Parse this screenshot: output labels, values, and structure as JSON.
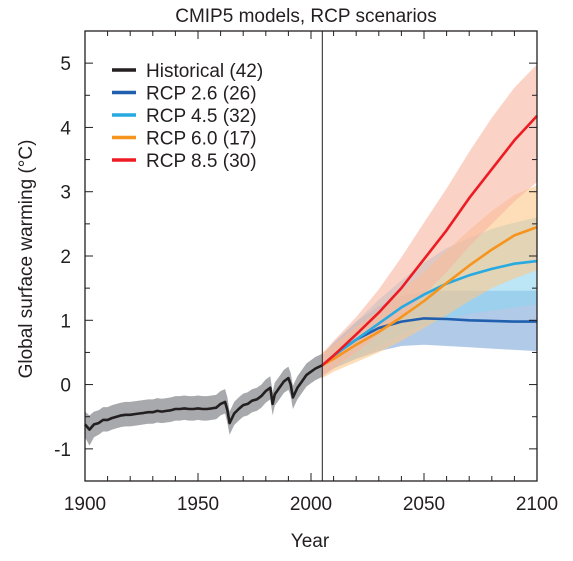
{
  "chart_data": {
    "type": "line",
    "title": "CMIP5 models, RCP scenarios",
    "xlabel": "Year",
    "ylabel": "Global surface warming (°C)",
    "xlim": [
      1900,
      2100
    ],
    "ylim": [
      -1.5,
      5.5
    ],
    "x_ticks": [
      1900,
      1950,
      2000,
      2050,
      2100
    ],
    "y_ticks": [
      -1,
      0,
      1,
      2,
      3,
      4,
      5
    ],
    "x_tick_labels": [
      "1900",
      "1950",
      "2000",
      "2050",
      "2100"
    ],
    "y_tick_labels": [
      "-1",
      "0",
      "1",
      "2",
      "3",
      "4",
      "5"
    ],
    "vertical_line_x": 2005,
    "legend_position": "top-left",
    "series": [
      {
        "name": "Historical (42)",
        "color": "#231f20",
        "band_color": "#a7a9ac",
        "x": [
          1900,
          1902,
          1904,
          1906,
          1908,
          1910,
          1912,
          1914,
          1916,
          1918,
          1920,
          1922,
          1924,
          1926,
          1928,
          1930,
          1932,
          1934,
          1936,
          1938,
          1940,
          1942,
          1944,
          1946,
          1948,
          1950,
          1952,
          1954,
          1956,
          1958,
          1960,
          1962,
          1963,
          1964,
          1966,
          1968,
          1970,
          1972,
          1974,
          1976,
          1978,
          1980,
          1982,
          1983,
          1984,
          1986,
          1988,
          1990,
          1991,
          1992,
          1994,
          1996,
          1998,
          2000,
          2002,
          2005
        ],
        "values": [
          -0.62,
          -0.7,
          -0.62,
          -0.6,
          -0.55,
          -0.55,
          -0.52,
          -0.5,
          -0.48,
          -0.47,
          -0.47,
          -0.46,
          -0.45,
          -0.44,
          -0.43,
          -0.43,
          -0.41,
          -0.42,
          -0.41,
          -0.4,
          -0.38,
          -0.38,
          -0.37,
          -0.38,
          -0.38,
          -0.37,
          -0.38,
          -0.38,
          -0.37,
          -0.36,
          -0.3,
          -0.27,
          -0.4,
          -0.6,
          -0.45,
          -0.38,
          -0.32,
          -0.3,
          -0.25,
          -0.23,
          -0.18,
          -0.1,
          -0.05,
          -0.3,
          -0.15,
          -0.05,
          0.05,
          0.1,
          0.0,
          -0.2,
          -0.05,
          0.05,
          0.15,
          0.2,
          0.25,
          0.3
        ],
        "lower": [
          -0.82,
          -0.95,
          -0.82,
          -0.78,
          -0.73,
          -0.73,
          -0.7,
          -0.68,
          -0.66,
          -0.65,
          -0.65,
          -0.64,
          -0.63,
          -0.62,
          -0.61,
          -0.61,
          -0.59,
          -0.6,
          -0.59,
          -0.58,
          -0.56,
          -0.56,
          -0.55,
          -0.56,
          -0.56,
          -0.55,
          -0.56,
          -0.56,
          -0.55,
          -0.54,
          -0.48,
          -0.45,
          -0.6,
          -0.78,
          -0.63,
          -0.56,
          -0.5,
          -0.48,
          -0.43,
          -0.41,
          -0.36,
          -0.28,
          -0.23,
          -0.48,
          -0.33,
          -0.23,
          -0.13,
          -0.08,
          -0.18,
          -0.38,
          -0.23,
          -0.13,
          -0.03,
          0.02,
          0.07,
          0.12
        ],
        "upper": [
          -0.42,
          -0.48,
          -0.42,
          -0.4,
          -0.35,
          -0.35,
          -0.32,
          -0.3,
          -0.28,
          -0.27,
          -0.27,
          -0.26,
          -0.25,
          -0.24,
          -0.23,
          -0.23,
          -0.21,
          -0.22,
          -0.21,
          -0.2,
          -0.18,
          -0.18,
          -0.17,
          -0.18,
          -0.18,
          -0.17,
          -0.18,
          -0.18,
          -0.17,
          -0.16,
          -0.1,
          -0.07,
          -0.2,
          -0.42,
          -0.27,
          -0.2,
          -0.14,
          -0.12,
          -0.07,
          -0.05,
          0.0,
          0.08,
          0.13,
          -0.12,
          0.03,
          0.13,
          0.23,
          0.28,
          0.18,
          -0.02,
          0.13,
          0.23,
          0.33,
          0.38,
          0.43,
          0.48
        ]
      },
      {
        "name": "RCP 2.6 (26)",
        "color": "#1f5fae",
        "band_color": "#7da7d9",
        "x": [
          2005,
          2010,
          2020,
          2030,
          2040,
          2050,
          2060,
          2070,
          2080,
          2090,
          2100
        ],
        "values": [
          0.3,
          0.45,
          0.7,
          0.88,
          0.98,
          1.03,
          1.02,
          1.0,
          0.99,
          0.98,
          0.98
        ],
        "lower": [
          0.15,
          0.25,
          0.4,
          0.52,
          0.6,
          0.62,
          0.6,
          0.58,
          0.56,
          0.54,
          0.52
        ],
        "upper": [
          0.45,
          0.65,
          0.98,
          1.22,
          1.38,
          1.45,
          1.46,
          1.46,
          1.46,
          1.46,
          1.46
        ]
      },
      {
        "name": "RCP 4.5 (32)",
        "color": "#27aae1",
        "band_color": "#8fd3f0",
        "x": [
          2005,
          2010,
          2020,
          2030,
          2040,
          2050,
          2060,
          2070,
          2080,
          2090,
          2100
        ],
        "values": [
          0.3,
          0.45,
          0.7,
          0.95,
          1.2,
          1.4,
          1.57,
          1.7,
          1.8,
          1.88,
          1.92
        ],
        "lower": [
          0.15,
          0.25,
          0.42,
          0.6,
          0.78,
          0.92,
          1.02,
          1.1,
          1.15,
          1.2,
          1.25
        ],
        "upper": [
          0.45,
          0.65,
          0.98,
          1.32,
          1.62,
          1.9,
          2.12,
          2.28,
          2.42,
          2.52,
          2.6
        ]
      },
      {
        "name": "RCP 6.0 (17)",
        "color": "#f7941d",
        "band_color": "#fbc88a",
        "x": [
          2005,
          2010,
          2020,
          2030,
          2040,
          2050,
          2060,
          2070,
          2080,
          2090,
          2100
        ],
        "values": [
          0.3,
          0.4,
          0.62,
          0.82,
          1.05,
          1.3,
          1.58,
          1.85,
          2.1,
          2.32,
          2.45
        ],
        "lower": [
          0.1,
          0.2,
          0.35,
          0.5,
          0.68,
          0.88,
          1.08,
          1.3,
          1.5,
          1.65,
          1.78
        ],
        "upper": [
          0.5,
          0.62,
          0.9,
          1.15,
          1.45,
          1.75,
          2.08,
          2.4,
          2.7,
          2.95,
          3.1
        ]
      },
      {
        "name": "RCP 8.5 (30)",
        "color": "#ed1c24",
        "band_color": "#f9b4a0",
        "x": [
          2005,
          2010,
          2020,
          2030,
          2040,
          2050,
          2060,
          2070,
          2080,
          2090,
          2100
        ],
        "values": [
          0.3,
          0.45,
          0.78,
          1.12,
          1.5,
          1.95,
          2.4,
          2.9,
          3.35,
          3.8,
          4.18
        ],
        "lower": [
          0.12,
          0.25,
          0.5,
          0.78,
          1.05,
          1.4,
          1.75,
          2.15,
          2.5,
          2.85,
          3.15
        ],
        "upper": [
          0.48,
          0.68,
          1.05,
          1.48,
          1.98,
          2.52,
          3.05,
          3.62,
          4.15,
          4.62,
          4.98
        ]
      }
    ]
  }
}
